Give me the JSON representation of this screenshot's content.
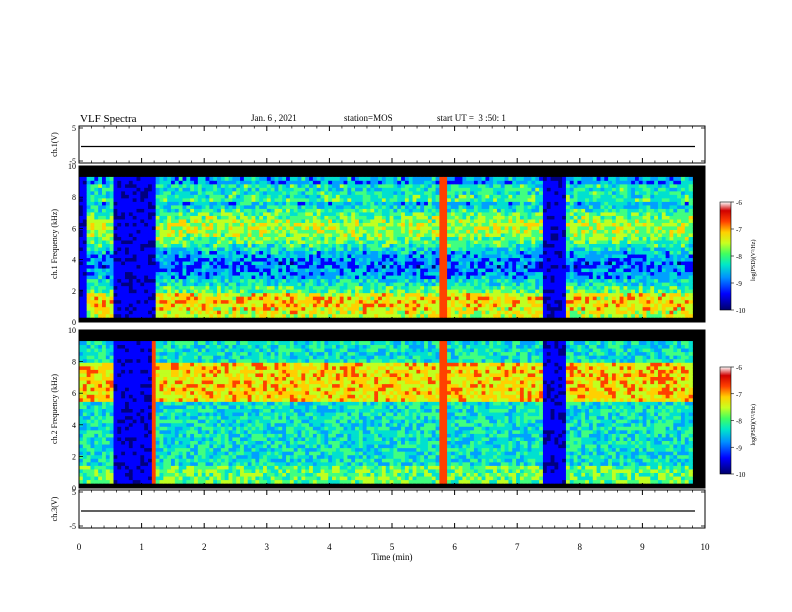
{
  "header": {
    "title": "VLF Spectra",
    "date": "Jan. 6 , 2021",
    "station": "station=MOS",
    "start_ut": "start UT =  3 :50: 1"
  },
  "chart_data": [
    {
      "id": "ch1-waveform",
      "type": "line",
      "ylabel": "ch.1(V)",
      "ylim": [
        -5,
        5
      ],
      "yticks": [
        "5",
        "-5"
      ],
      "xlim": [
        0,
        10
      ],
      "trace_level": 0
    },
    {
      "id": "ch1-spectrogram",
      "type": "heatmap",
      "ylabel": "ch.1 Frequency (kHz)",
      "ylim": [
        0,
        10
      ],
      "yticks": [
        "0",
        "2",
        "4",
        "6",
        "8",
        "10"
      ],
      "xlim": [
        0,
        10
      ],
      "colorbar": {
        "label": "log(PSD)(V²/Hz)",
        "range": [
          -10,
          -6
        ],
        "ticks": [
          "-6",
          "-7",
          "-8",
          "-9",
          "-10"
        ]
      },
      "data_extent_min": 9.8,
      "quiet_intervals_min": [
        [
          0.0,
          0.1
        ],
        [
          0.55,
          1.2
        ],
        [
          7.4,
          7.75
        ]
      ]
    },
    {
      "id": "ch2-spectrogram",
      "type": "heatmap",
      "ylabel": "ch.2 Frequency (kHz)",
      "ylim": [
        0,
        10
      ],
      "yticks": [
        "0",
        "2",
        "4",
        "6",
        "8",
        "10"
      ],
      "xlim": [
        0,
        10
      ],
      "colorbar": {
        "label": "log(PSD)(V²/Hz)",
        "range": [
          -10,
          -6
        ],
        "ticks": [
          "-6",
          "-7",
          "-8",
          "-9",
          "-10"
        ]
      },
      "data_extent_min": 9.8,
      "quiet_intervals_min": [
        [
          0.55,
          1.2
        ],
        [
          7.4,
          7.75
        ]
      ]
    },
    {
      "id": "ch3-waveform",
      "type": "line",
      "ylabel": "ch.3(V)",
      "ylim": [
        -5,
        5
      ],
      "yticks": [
        "5",
        "-5"
      ],
      "xlim": [
        0,
        10
      ],
      "trace_level": 0
    }
  ],
  "x_axis": {
    "label": "Time (min)",
    "ticks": [
      "0",
      "1",
      "2",
      "3",
      "4",
      "5",
      "6",
      "7",
      "8",
      "9",
      "10"
    ]
  },
  "colors": {
    "colormap": [
      "#000080",
      "#0000ff",
      "#00a0ff",
      "#00e0d0",
      "#40ff80",
      "#c0ff20",
      "#ffd000",
      "#ff4000",
      "#d00000",
      "#ffffff"
    ]
  }
}
